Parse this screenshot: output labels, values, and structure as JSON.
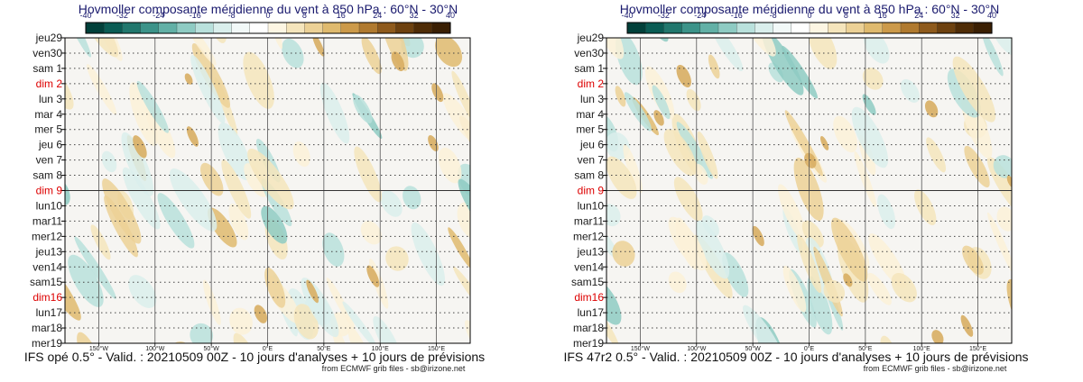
{
  "chart_data": [
    {
      "type": "heatmap",
      "title": "Hovmoller composante méridienne du vent à 850 hPa : 60°N - 30°N",
      "colorbar": {
        "ticks": [
          "-40",
          "-32",
          "-24",
          "-16",
          "-8",
          "0",
          "8",
          "16",
          "24",
          "32",
          "40"
        ],
        "colors": [
          "#01403a",
          "#0a5c54",
          "#21776d",
          "#3c9389",
          "#62b0a6",
          "#8ecbc3",
          "#b9e1dc",
          "#daefec",
          "#f2f9f8",
          "#ffffff",
          "#fdf6e3",
          "#f5e5bc",
          "#ecd196",
          "#dfba6e",
          "#cc9a4a",
          "#b07a2f",
          "#8e5a1c",
          "#6d410f",
          "#4f2c06",
          "#3a1f03"
        ]
      },
      "y_labels": [
        {
          "text": "jeu29",
          "sunday": false
        },
        {
          "text": "ven30",
          "sunday": false
        },
        {
          "text": "sam 1",
          "sunday": false
        },
        {
          "text": "dim 2",
          "sunday": true
        },
        {
          "text": "lun 3",
          "sunday": false
        },
        {
          "text": "mar 4",
          "sunday": false
        },
        {
          "text": "mer 5",
          "sunday": false
        },
        {
          "text": "jeu 6",
          "sunday": false
        },
        {
          "text": "ven 7",
          "sunday": false
        },
        {
          "text": "sam 8",
          "sunday": false
        },
        {
          "text": "dim 9",
          "sunday": true
        },
        {
          "text": "lun10",
          "sunday": false
        },
        {
          "text": "mar11",
          "sunday": false
        },
        {
          "text": "mer12",
          "sunday": false
        },
        {
          "text": "jeu13",
          "sunday": false
        },
        {
          "text": "ven14",
          "sunday": false
        },
        {
          "text": "sam15",
          "sunday": false
        },
        {
          "text": "dim16",
          "sunday": true
        },
        {
          "text": "lun17",
          "sunday": false
        },
        {
          "text": "mar18",
          "sunday": false
        },
        {
          "text": "mer19",
          "sunday": false
        }
      ],
      "x_labels": [
        "150°W",
        "100°W",
        "50°W",
        "0°E",
        "50°E",
        "100°E",
        "150°E"
      ],
      "x_values": [
        -150,
        -100,
        -50,
        0,
        50,
        100,
        150
      ],
      "xlim": [
        -180,
        180
      ],
      "analysis_forecast_boundary_day": 10,
      "pattern_seed": 11,
      "footer": "IFS opé 0.5° - Valid. : 20210509 00Z - 10 jours d'analyses + 10 jours de prévisions",
      "credit": "from ECMWF grib files - sb@irizone.net"
    },
    {
      "type": "heatmap",
      "title": "Hovmoller composante méridienne du vent à 850 hPa : 60°N - 30°N",
      "colorbar": {
        "ticks": [
          "-40",
          "-32",
          "-24",
          "-16",
          "-8",
          "0",
          "8",
          "16",
          "24",
          "32",
          "40"
        ],
        "colors": [
          "#01403a",
          "#0a5c54",
          "#21776d",
          "#3c9389",
          "#62b0a6",
          "#8ecbc3",
          "#b9e1dc",
          "#daefec",
          "#f2f9f8",
          "#ffffff",
          "#fdf6e3",
          "#f5e5bc",
          "#ecd196",
          "#dfba6e",
          "#cc9a4a",
          "#b07a2f",
          "#8e5a1c",
          "#6d410f",
          "#4f2c06",
          "#3a1f03"
        ]
      },
      "y_labels": [
        {
          "text": "jeu29",
          "sunday": false
        },
        {
          "text": "ven30",
          "sunday": false
        },
        {
          "text": "sam 1",
          "sunday": false
        },
        {
          "text": "dim 2",
          "sunday": true
        },
        {
          "text": "lun 3",
          "sunday": false
        },
        {
          "text": "mar 4",
          "sunday": false
        },
        {
          "text": "mer 5",
          "sunday": false
        },
        {
          "text": "jeu 6",
          "sunday": false
        },
        {
          "text": "ven 7",
          "sunday": false
        },
        {
          "text": "sam 8",
          "sunday": false
        },
        {
          "text": "dim 9",
          "sunday": true
        },
        {
          "text": "lun10",
          "sunday": false
        },
        {
          "text": "mar11",
          "sunday": false
        },
        {
          "text": "mer12",
          "sunday": false
        },
        {
          "text": "jeu13",
          "sunday": false
        },
        {
          "text": "ven14",
          "sunday": false
        },
        {
          "text": "sam15",
          "sunday": false
        },
        {
          "text": "dim16",
          "sunday": true
        },
        {
          "text": "lun17",
          "sunday": false
        },
        {
          "text": "mar18",
          "sunday": false
        },
        {
          "text": "mer19",
          "sunday": false
        }
      ],
      "x_labels": [
        "150°W",
        "100°W",
        "50°W",
        "0°E",
        "50°E",
        "100°E",
        "150°E"
      ],
      "x_values": [
        -150,
        -100,
        -50,
        0,
        50,
        100,
        150
      ],
      "xlim": [
        -180,
        180
      ],
      "analysis_forecast_boundary_day": 10,
      "pattern_seed": 23,
      "footer": "IFS 47r2 0.5° - Valid. : 20210509 00Z - 10 jours d'analyses + 10 jours de prévisions",
      "credit": "from ECMWF grib files - sb@irizone.net"
    }
  ]
}
